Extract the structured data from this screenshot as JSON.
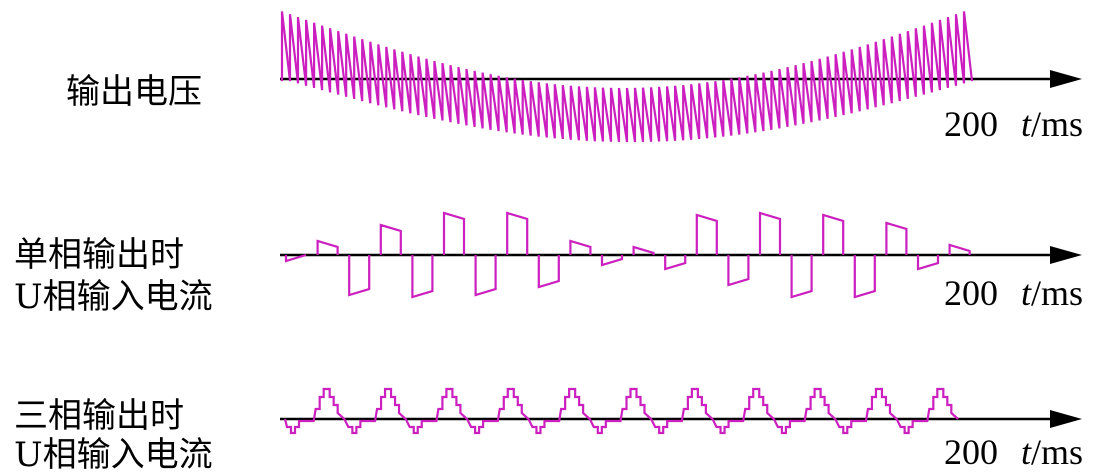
{
  "colors": {
    "waveform": "#cc1fbf",
    "axis": "#000000"
  },
  "panels": [
    {
      "id": "output-voltage",
      "label_lines": [
        "输出电压"
      ],
      "x_end_label": "200",
      "x_unit_var": "t",
      "x_unit": "/ms"
    },
    {
      "id": "single-phase-current",
      "label_lines": [
        "单相输出时",
        "U相输入电流"
      ],
      "x_end_label": "200",
      "x_unit_var": "t",
      "x_unit": "/ms"
    },
    {
      "id": "three-phase-current",
      "label_lines": [
        "三相输出时",
        "U相输入电流"
      ],
      "x_end_label": "200",
      "x_unit_var": "t",
      "x_unit": "/ms"
    }
  ]
}
